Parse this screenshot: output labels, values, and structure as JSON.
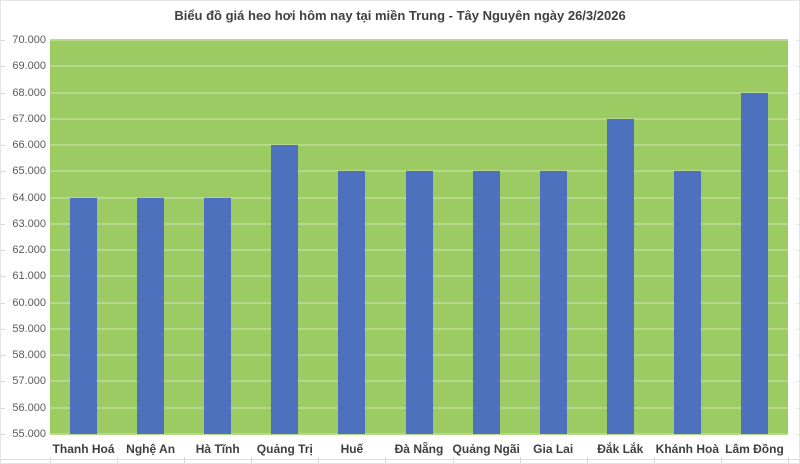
{
  "chart_data": {
    "type": "bar",
    "title": "Biểu đồ giá heo hơi hôm nay tại miền Trung - Tây Nguyên ngày 26/3/2026",
    "categories": [
      "Thanh Hoá",
      "Nghệ An",
      "Hà Tĩnh",
      "Quảng Trị",
      "Huế",
      "Đà Nẵng",
      "Quảng Ngãi",
      "Gia Lai",
      "Đắk Lắk",
      "Khánh Hoà",
      "Lâm Đồng"
    ],
    "values": [
      64000,
      64000,
      64000,
      66000,
      65000,
      65000,
      65000,
      65000,
      67000,
      65000,
      68000
    ],
    "xlabel": "",
    "ylabel": "",
    "y_axis": {
      "min": 55000,
      "max": 70000,
      "step": 1000,
      "tick_labels": [
        "70.000",
        "69.000",
        "68.000",
        "67.000",
        "66.000",
        "65.000",
        "64.000",
        "63.000",
        "62.000",
        "61.000",
        "60.000",
        "59.000",
        "58.000",
        "57.000",
        "56.000",
        "55.000"
      ]
    },
    "grid": true,
    "legend": "none",
    "colors": {
      "bar": "#4d71bd",
      "plot_background": "#9bcb62",
      "gridline": "#b5d88c",
      "title_text": "#404040",
      "x_label_text": "#3f3f3f",
      "y_label_text": "#595959",
      "border": "#e4e4e4"
    }
  }
}
